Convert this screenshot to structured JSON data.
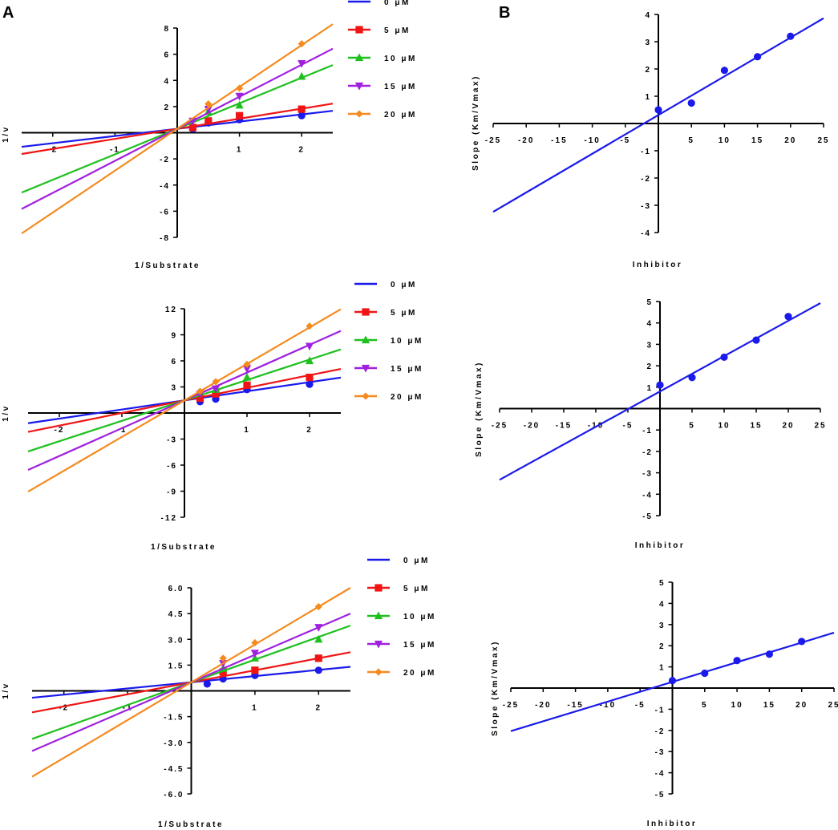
{
  "figure": {
    "panel_labels": [
      "A",
      "B"
    ]
  },
  "chart_data": [
    {
      "type": "line",
      "title": "",
      "xlabel": "1/Substrate",
      "ylabel": "1/v",
      "xlim": [
        -2.5,
        2.5
      ],
      "ylim": [
        -8,
        8
      ],
      "xticks": [
        -2,
        -1,
        1,
        2
      ],
      "xticklabels": [
        "-2",
        "-1",
        "1",
        "2"
      ],
      "yticks": [
        8,
        6,
        4,
        2,
        -2,
        -4,
        -6,
        -8
      ],
      "yticklabels": [
        "8",
        "6",
        "4",
        "2",
        "-2",
        "-4",
        "-6",
        "-8"
      ],
      "grid": false,
      "legend_position": "top-right outside",
      "series": [
        {
          "name": "0 μM",
          "color": "#1a1aeb",
          "marker": "circle",
          "slope": 0.55,
          "intercept": 0.3,
          "x": [
            0.25,
            0.5,
            1,
            2
          ],
          "y": [
            0.3,
            0.75,
            1.0,
            1.3
          ]
        },
        {
          "name": "5 μM",
          "color": "#f01414",
          "marker": "square",
          "slope": 0.77,
          "intercept": 0.3,
          "x": [
            0.25,
            0.5,
            1,
            2
          ],
          "y": [
            0.4,
            0.9,
            1.3,
            1.8
          ]
        },
        {
          "name": "10 μM",
          "color": "#1ec01e",
          "marker": "triangle-up",
          "slope": 1.95,
          "intercept": 0.3,
          "x": [
            0.5,
            1,
            2
          ],
          "y": [
            1.6,
            2.1,
            4.3
          ]
        },
        {
          "name": "15 μM",
          "color": "#a020e0",
          "marker": "triangle-down",
          "slope": 2.45,
          "intercept": 0.3,
          "x": [
            0.25,
            0.5,
            1,
            2
          ],
          "y": [
            0.9,
            1.8,
            2.8,
            5.3
          ]
        },
        {
          "name": "20 μM",
          "color": "#f58a1e",
          "marker": "diamond",
          "slope": 3.2,
          "intercept": 0.3,
          "x": [
            0.5,
            1,
            2
          ],
          "y": [
            2.2,
            3.4,
            6.8
          ]
        }
      ]
    },
    {
      "type": "line",
      "title": "",
      "xlabel": "Inhibitor",
      "ylabel": "Slope (Km/Vmax)",
      "xlim": [
        -25,
        25
      ],
      "ylim": [
        -4,
        4
      ],
      "xticks": [
        -25,
        -20,
        -15,
        -10,
        -5,
        5,
        10,
        15,
        20,
        25
      ],
      "xticklabels": [
        "-25",
        "-20",
        "-15",
        "-10",
        "-5",
        "5",
        "10",
        "15",
        "20",
        "25"
      ],
      "yticks": [
        4,
        3,
        2,
        1,
        -1,
        -2,
        -3,
        -4
      ],
      "yticklabels": [
        "4",
        "3",
        "2",
        "1",
        "-1",
        "-2",
        "-3",
        "-4"
      ],
      "grid": false,
      "legend_position": "none",
      "series": [
        {
          "name": "Slope",
          "color": "#1a1aeb",
          "marker": "circle",
          "slope": 0.142,
          "intercept": 0.31,
          "x": [
            0,
            5,
            10,
            15,
            20
          ],
          "y": [
            0.5,
            0.75,
            1.95,
            2.45,
            3.2
          ]
        }
      ]
    },
    {
      "type": "line",
      "title": "",
      "xlabel": "1/Substrate",
      "ylabel": "1/v",
      "xlim": [
        -2.5,
        2.5
      ],
      "ylim": [
        -12,
        12
      ],
      "xticks": [
        -2,
        -1,
        1,
        2
      ],
      "xticklabels": [
        "-2",
        "-1",
        "1",
        "2"
      ],
      "yticks": [
        12,
        9,
        6,
        3,
        -3,
        -6,
        -9,
        -12
      ],
      "yticklabels": [
        "12",
        "9",
        "6",
        "3",
        "-3",
        "-6",
        "-9",
        "-12"
      ],
      "grid": false,
      "legend_position": "top-right outside",
      "series": [
        {
          "name": "0 μM",
          "color": "#1a1aeb",
          "marker": "circle",
          "slope": 1.05,
          "intercept": 1.45,
          "x": [
            0.25,
            0.5,
            1,
            2
          ],
          "y": [
            1.3,
            1.6,
            2.7,
            3.3
          ]
        },
        {
          "name": "5 μM",
          "color": "#f01414",
          "marker": "square",
          "slope": 1.45,
          "intercept": 1.45,
          "x": [
            0.25,
            0.5,
            1,
            2
          ],
          "y": [
            1.7,
            2.2,
            3.2,
            4.1
          ]
        },
        {
          "name": "10 μM",
          "color": "#1ec01e",
          "marker": "triangle-up",
          "slope": 2.35,
          "intercept": 1.45,
          "x": [
            0.5,
            1,
            2
          ],
          "y": [
            2.7,
            4.1,
            6.0
          ]
        },
        {
          "name": "15 μM",
          "color": "#a020e0",
          "marker": "triangle-down",
          "slope": 3.2,
          "intercept": 1.45,
          "x": [
            0.25,
            0.5,
            1,
            2
          ],
          "y": [
            2.2,
            2.8,
            5.1,
            7.7
          ]
        },
        {
          "name": "20 μM",
          "color": "#f58a1e",
          "marker": "diamond",
          "slope": 4.2,
          "intercept": 1.45,
          "x": [
            0.25,
            0.5,
            1,
            2
          ],
          "y": [
            2.5,
            3.6,
            5.6,
            10.0
          ]
        }
      ]
    },
    {
      "type": "line",
      "title": "",
      "xlabel": "Inhibitor",
      "ylabel": "Slope (Km/Vmax)",
      "xlim": [
        -25,
        25
      ],
      "ylim": [
        -5,
        5
      ],
      "xticks": [
        -25,
        -20,
        -15,
        -10,
        -5,
        5,
        10,
        15,
        20,
        25
      ],
      "xticklabels": [
        "-25",
        "-20",
        "-15",
        "-10",
        "-5",
        "5",
        "10",
        "15",
        "20",
        "25"
      ],
      "yticks": [
        5,
        4,
        3,
        2,
        1,
        -1,
        -2,
        -3,
        -4,
        -5
      ],
      "yticklabels": [
        "5",
        "4",
        "3",
        "2",
        "1",
        "-1",
        "-2",
        "-3",
        "-4",
        "-5"
      ],
      "grid": false,
      "legend_position": "none",
      "series": [
        {
          "name": "Slope",
          "color": "#1a1aeb",
          "marker": "circle",
          "slope": 0.165,
          "intercept": 0.8,
          "x": [
            0,
            5,
            10,
            15,
            20
          ],
          "y": [
            1.1,
            1.45,
            2.4,
            3.2,
            4.3
          ]
        }
      ]
    },
    {
      "type": "line",
      "title": "",
      "xlabel": "1/Substrate",
      "ylabel": "1/v",
      "xlim": [
        -2.5,
        2.5
      ],
      "ylim": [
        -6,
        6
      ],
      "xticks": [
        -2,
        -1,
        1,
        2
      ],
      "xticklabels": [
        "-2",
        "-1",
        "1",
        "2"
      ],
      "yticks": [
        6,
        4.5,
        3,
        1.5,
        -1.5,
        -3,
        -4.5,
        -6
      ],
      "yticklabels": [
        "6.0",
        "4.5",
        "3.0",
        "1.5",
        "-1.5",
        "-3.0",
        "-4.5",
        "-6.0"
      ],
      "grid": false,
      "legend_position": "top-right outside",
      "series": [
        {
          "name": "0 μM",
          "color": "#1a1aeb",
          "marker": "circle",
          "slope": 0.36,
          "intercept": 0.5,
          "x": [
            0.25,
            0.5,
            1,
            2
          ],
          "y": [
            0.4,
            0.7,
            0.9,
            1.2
          ]
        },
        {
          "name": "5 μM",
          "color": "#f01414",
          "marker": "square",
          "slope": 0.7,
          "intercept": 0.5,
          "x": [
            0.5,
            1,
            2
          ],
          "y": [
            1.1,
            1.2,
            1.9
          ]
        },
        {
          "name": "10 μM",
          "color": "#1ec01e",
          "marker": "triangle-up",
          "slope": 1.32,
          "intercept": 0.5,
          "x": [
            0.5,
            1,
            2
          ],
          "y": [
            1.3,
            1.9,
            3.0
          ]
        },
        {
          "name": "15 μM",
          "color": "#a020e0",
          "marker": "triangle-down",
          "slope": 1.6,
          "intercept": 0.5,
          "x": [
            0.5,
            1,
            2
          ],
          "y": [
            1.6,
            2.2,
            3.7
          ]
        },
        {
          "name": "20 μM",
          "color": "#f58a1e",
          "marker": "diamond",
          "slope": 2.2,
          "intercept": 0.5,
          "x": [
            0.5,
            1,
            2
          ],
          "y": [
            1.9,
            2.8,
            4.9
          ]
        }
      ]
    },
    {
      "type": "line",
      "title": "",
      "xlabel": "Inhibitor",
      "ylabel": "Slope (Km/Vmax)",
      "xlim": [
        -25,
        25
      ],
      "ylim": [
        -5,
        5
      ],
      "xticks": [
        -25,
        -20,
        -15,
        -10,
        -5,
        5,
        10,
        15,
        20,
        25
      ],
      "xticklabels": [
        "-25",
        "-20",
        "-15",
        "-10",
        "-5",
        "5",
        "10",
        "15",
        "20",
        "25"
      ],
      "yticks": [
        5,
        4,
        3,
        2,
        1,
        -1,
        -2,
        -3,
        -4,
        -5
      ],
      "yticklabels": [
        "5",
        "4",
        "3",
        "2",
        "1",
        "-1",
        "-2",
        "-3",
        "-4",
        "-5"
      ],
      "grid": false,
      "legend_position": "none",
      "series": [
        {
          "name": "Slope",
          "color": "#1a1aeb",
          "marker": "circle",
          "slope": 0.093,
          "intercept": 0.29,
          "x": [
            0,
            5,
            10,
            15,
            20
          ],
          "y": [
            0.35,
            0.7,
            1.3,
            1.6,
            2.2
          ]
        }
      ]
    }
  ]
}
